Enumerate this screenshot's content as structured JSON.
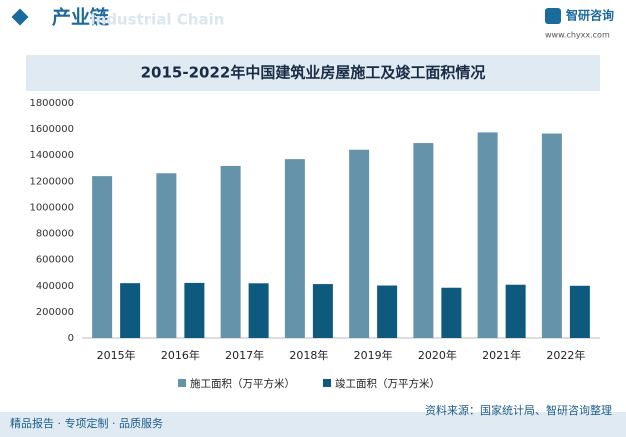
{
  "header": {
    "title": "产业链",
    "watermark": "Industrial Chain",
    "brand": "智研咨询",
    "website": "www.chyxx.com"
  },
  "chart_data": {
    "type": "bar",
    "title": "2015-2022年中国建筑业房屋施工及竣工面积情况",
    "categories": [
      "2015年",
      "2016年",
      "2017年",
      "2018年",
      "2019年",
      "2020年",
      "2021年",
      "2022年"
    ],
    "series": [
      {
        "name": "施工面积（万平方米）",
        "color": "#6594aa",
        "values": [
          1240000,
          1262000,
          1318000,
          1370000,
          1442000,
          1493000,
          1575000,
          1566000
        ]
      },
      {
        "name": "竣工面积（万平方米）",
        "color": "#0e5a7e",
        "values": [
          420000,
          422000,
          419000,
          413000,
          402000,
          385000,
          408000,
          400000
        ]
      }
    ],
    "ylim": [
      0,
      1800000
    ],
    "yticks": [
      0,
      200000,
      400000,
      600000,
      800000,
      1000000,
      1200000,
      1400000,
      1600000,
      1800000
    ],
    "grid": false,
    "legend": "bottom"
  },
  "footer": {
    "left": "精品报告 · 专项定制 · 品质服务",
    "source": "资料来源：国家统计局、智研咨询整理"
  }
}
